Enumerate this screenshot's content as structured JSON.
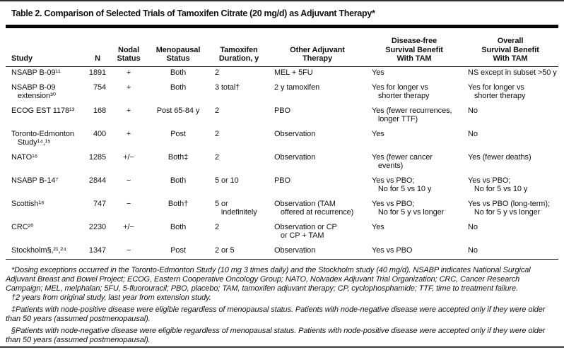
{
  "figure": {
    "title": "Table 2. Comparison of Selected Trials of Tamoxifen Citrate (20 mg/d) as Adjuvant Therapy*"
  },
  "table": {
    "headers": [
      "Study",
      "N",
      "Nodal\nStatus",
      "Menopausal\nStatus",
      "Tamoxifen\nDuration, y",
      "Other Adjuvant\nTherapy",
      "Disease-free\nSurvival Benefit\nWith TAM",
      "Overall\nSurvival Benefit\nWith TAM"
    ],
    "rows": [
      {
        "study": "NSABP B-09¹¹",
        "n": "1891",
        "nodal": "+",
        "menopausal": "Both",
        "duration": "2",
        "other": "MEL + 5FU",
        "dfs": "Yes",
        "os": "NS except in subset >50 y"
      },
      {
        "study": "NSABP B-09\n   extension³⁰",
        "n": "754",
        "nodal": "+",
        "menopausal": "Both",
        "duration": "3 total†",
        "other": "2 y tamoxifen",
        "dfs": "Yes for longer vs\n   shorter therapy",
        "os": "Yes for longer vs\n   shorter therapy"
      },
      {
        "study": "ECOG EST 1178¹³",
        "n": "168",
        "nodal": "+",
        "menopausal": "Post 65-84 y",
        "duration": "2",
        "other": "PBO",
        "dfs": "Yes (fewer recurrences,\n   longer TTF)",
        "os": "No"
      },
      {
        "study": "Toronto-Edmonton\n   Study¹⁴,¹⁵",
        "n": "400",
        "nodal": "+",
        "menopausal": "Post",
        "duration": "2",
        "other": "Observation",
        "dfs": "Yes",
        "os": "No"
      },
      {
        "study": "NATO¹⁶",
        "n": "1285",
        "nodal": "+/−",
        "menopausal": "Both‡",
        "duration": "2",
        "other": "Observation",
        "dfs": "Yes (fewer cancer\n   events)",
        "os": "Yes (fewer deaths)"
      },
      {
        "study": "NSABP B-14⁷",
        "n": "2844",
        "nodal": "−",
        "menopausal": "Both",
        "duration": "5 or 10",
        "other": "PBO",
        "dfs": "Yes vs PBO;\n   No for 5 vs 10 y",
        "os": "Yes vs PBO;\n   No for 5 vs 10 y"
      },
      {
        "study": "Scottish¹⁸",
        "n": "747",
        "nodal": "−",
        "menopausal": "Both†",
        "duration": "5 or\n   indefinitely",
        "other": "Observation (TAM\n   offered at recurrence)",
        "dfs": "Yes vs PBO;\n   No for 5 y vs longer",
        "os": "Yes vs PBO (long-term);\n   No for 5 y vs longer"
      },
      {
        "study": "CRC²⁰",
        "n": "2230",
        "nodal": "+/−",
        "menopausal": "Both",
        "duration": "2",
        "other": "Observation or CP\n   or CP + TAM",
        "dfs": "Yes",
        "os": "No"
      },
      {
        "study": "Stockholm§,²¹,²⁴",
        "n": "1347",
        "nodal": "−",
        "menopausal": "Post",
        "duration": "2 or 5",
        "other": "Observation",
        "dfs": "Yes vs PBO",
        "os": "No"
      }
    ],
    "footnotes": [
      "*Dosing exceptions occurred in the Toronto-Edmonton Study (10 mg 3 times daily) and the Stockholm study (40 mg/d). NSABP indicates National Surgical Adjuvant Breast and Bowel Project; ECOG, Eastern Cooperative Oncology Group; NATO, Nolvadex Adjuvant Trial Organization; CRC, Cancer Research Campaign; MEL, melphalan; 5FU, 5-fluorouracil; PBO, placebo; TAM, tamoxifen adjuvant therapy; CP, cyclophosphamide; TTF, time to treatment failure.",
      "†2 years from original study, last year from extension study.",
      "‡Patients with node-positive disease were eligible regardless of menopausal status. Patients with node-negative disease were accepted only if they were older than 50 years (assumed postmenopausal).",
      "§Patients with node-negative disease were eligible regardless of menopausal status. Patients with node-positive disease were accepted only if they were older than 50 years (assumed postmenopausal)."
    ]
  }
}
